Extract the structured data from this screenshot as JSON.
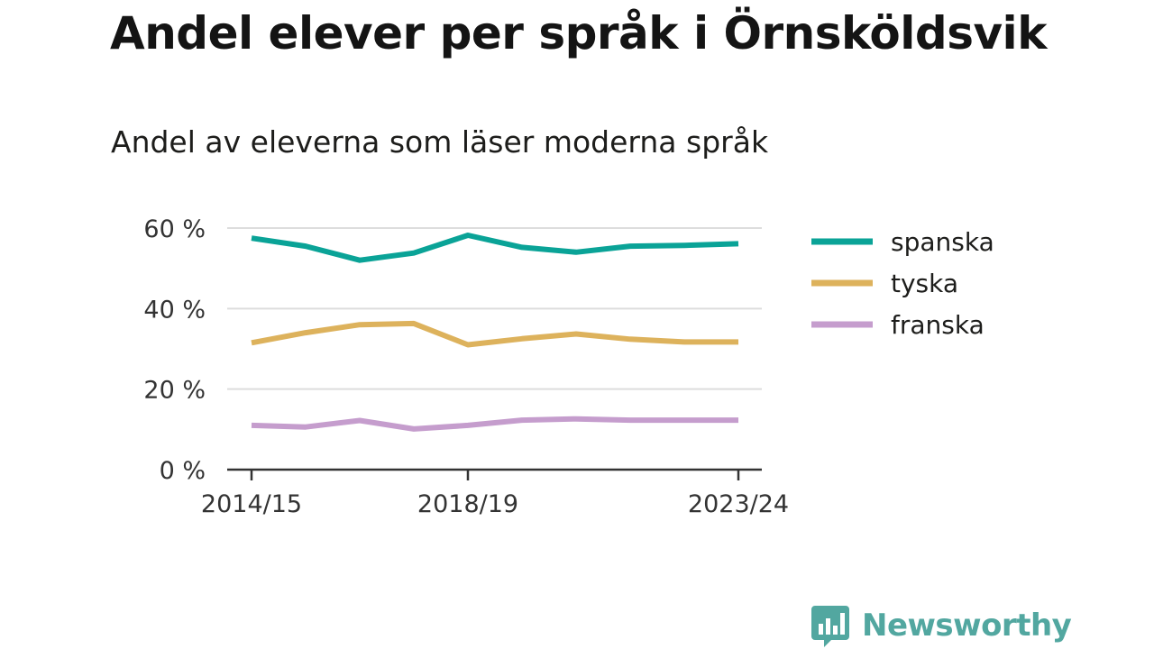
{
  "title": "Andel elever per språk i Örnsköldsvik",
  "subtitle": "Andel av eleverna som läser moderna språk",
  "brand": {
    "name": "Newsworthy",
    "color": "#52a7a0"
  },
  "chart_data": {
    "type": "line",
    "x": [
      "2014/15",
      "2015/16",
      "2016/17",
      "2017/18",
      "2018/19",
      "2019/20",
      "2020/21",
      "2021/22",
      "2022/23",
      "2023/24"
    ],
    "x_tick_labels": [
      "2014/15",
      "2018/19",
      "2023/24"
    ],
    "y_tick_labels": [
      "0 %",
      "20 %",
      "40 %",
      "60 %"
    ],
    "y_ticks": [
      0,
      20,
      40,
      60
    ],
    "ylim": [
      0,
      60
    ],
    "series": [
      {
        "name": "spanska",
        "color": "#0aa397",
        "values": [
          57.5,
          55.5,
          52.0,
          53.8,
          58.2,
          55.2,
          54.0,
          55.5,
          55.7,
          56.1
        ]
      },
      {
        "name": "tyska",
        "color": "#ddb25c",
        "values": [
          31.5,
          34.0,
          36.0,
          36.3,
          31.0,
          32.5,
          33.7,
          32.4,
          31.7,
          31.7
        ]
      },
      {
        "name": "franska",
        "color": "#c59dcd",
        "values": [
          11.0,
          10.6,
          12.2,
          10.1,
          11.0,
          12.3,
          12.6,
          12.3,
          12.3,
          12.3
        ]
      }
    ],
    "grid": true,
    "legend": "right"
  }
}
